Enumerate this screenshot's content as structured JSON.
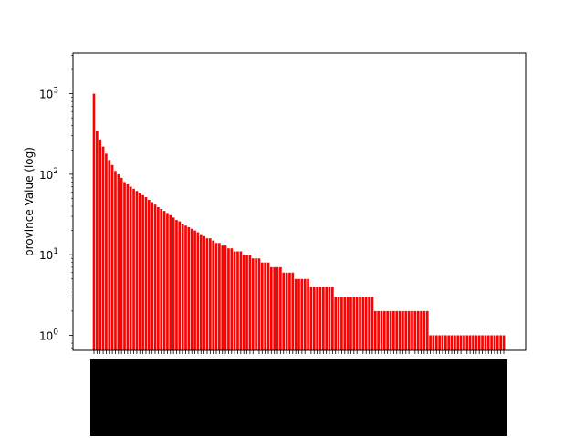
{
  "chart_data": {
    "type": "bar",
    "title": "",
    "xlabel": "",
    "ylabel": "province Value (log)",
    "yscale": "log",
    "ylim": [
      0.65,
      3200
    ],
    "bar_color": "#ff0000",
    "grid": false,
    "legend": "none",
    "ytick_labels": [
      {
        "value": 1,
        "base": "10",
        "exp": "0"
      },
      {
        "value": 10,
        "base": "10",
        "exp": "1"
      },
      {
        "value": 100,
        "base": "10",
        "exp": "2"
      },
      {
        "value": 1000,
        "base": "10",
        "exp": "3"
      }
    ],
    "values": [
      1000,
      340,
      270,
      220,
      180,
      150,
      130,
      110,
      100,
      90,
      80,
      75,
      70,
      66,
      62,
      58,
      55,
      52,
      48,
      45,
      42,
      39,
      37,
      35,
      33,
      31,
      29,
      27,
      26,
      24,
      23,
      22,
      21,
      20,
      19,
      18,
      17,
      16,
      16,
      15,
      14,
      14,
      13,
      13,
      12,
      12,
      11,
      11,
      11,
      10,
      10,
      10,
      9,
      9,
      9,
      8,
      8,
      8,
      7,
      7,
      7,
      7,
      6,
      6,
      6,
      6,
      5,
      5,
      5,
      5,
      5,
      4,
      4,
      4,
      4,
      4,
      4,
      4,
      4,
      3,
      3,
      3,
      3,
      3,
      3,
      3,
      3,
      3,
      3,
      3,
      3,
      3,
      2,
      2,
      2,
      2,
      2,
      2,
      2,
      2,
      2,
      2,
      2,
      2,
      2,
      2,
      2,
      2,
      2,
      2,
      1,
      1,
      1,
      1,
      1,
      1,
      1,
      1,
      1,
      1,
      1,
      1,
      1,
      1,
      1,
      1,
      1,
      1,
      1,
      1,
      1,
      1,
      1,
      1,
      1
    ]
  }
}
